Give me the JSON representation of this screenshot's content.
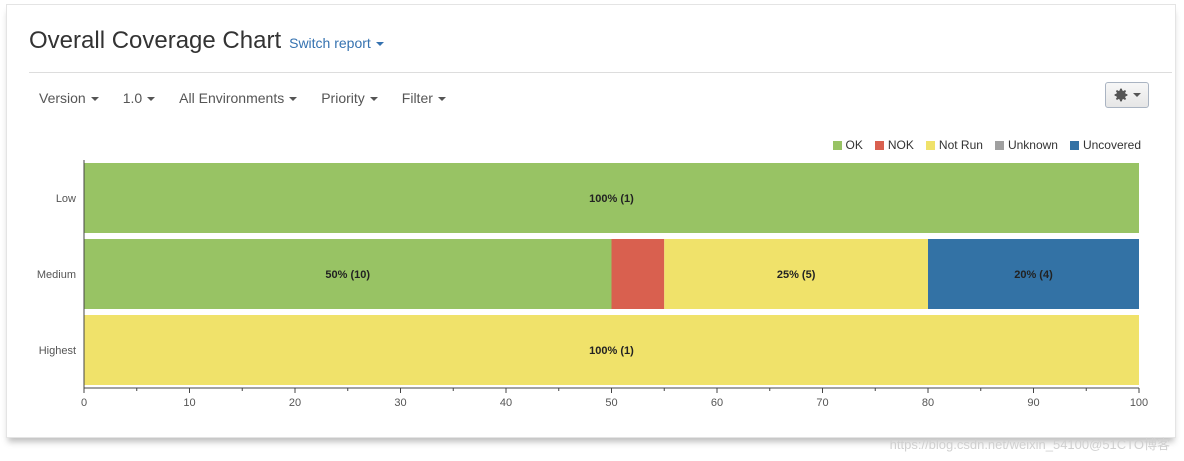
{
  "header": {
    "title": "Overall Coverage Chart",
    "switch_report": "Switch report"
  },
  "toolbar": {
    "items": [
      {
        "label": "Version"
      },
      {
        "label": "1.0"
      },
      {
        "label": "All Environments"
      },
      {
        "label": "Priority"
      },
      {
        "label": "Filter"
      }
    ],
    "settings_icon": "gear-icon"
  },
  "colors": {
    "OK": "#98c364",
    "NOK": "#d9604f",
    "Not Run": "#f0e26a",
    "Unknown": "#a0a0a0",
    "Uncovered": "#3372a5",
    "link": "#3572b0"
  },
  "legend": [
    {
      "label": "OK",
      "color": "#98c364"
    },
    {
      "label": "NOK",
      "color": "#d9604f"
    },
    {
      "label": "Not Run",
      "color": "#f0e26a"
    },
    {
      "label": "Unknown",
      "color": "#a0a0a0"
    },
    {
      "label": "Uncovered",
      "color": "#3372a5"
    }
  ],
  "chart_data": {
    "type": "bar",
    "orientation": "horizontal",
    "stacked": true,
    "categories": [
      "Low",
      "Medium",
      "Highest"
    ],
    "xlim": [
      0,
      100
    ],
    "xticks": [
      0,
      10,
      20,
      30,
      40,
      50,
      60,
      70,
      80,
      90,
      100
    ],
    "series": [
      {
        "name": "OK",
        "values": [
          100,
          50,
          0
        ],
        "labels": [
          "100% (1)",
          "50% (10)",
          ""
        ]
      },
      {
        "name": "NOK",
        "values": [
          0,
          5,
          0
        ],
        "labels": [
          "",
          "",
          ""
        ]
      },
      {
        "name": "Not Run",
        "values": [
          0,
          25,
          100
        ],
        "labels": [
          "",
          "25% (5)",
          "100% (1)"
        ]
      },
      {
        "name": "Unknown",
        "values": [
          0,
          0,
          0
        ],
        "labels": [
          "",
          "",
          ""
        ]
      },
      {
        "name": "Uncovered",
        "values": [
          0,
          20,
          0
        ],
        "labels": [
          "",
          "20% (4)",
          ""
        ]
      }
    ],
    "legend_position": "top-right",
    "grid": false
  },
  "watermark": "https://blog.csdn.net/weixin_54100@51CTO博客"
}
